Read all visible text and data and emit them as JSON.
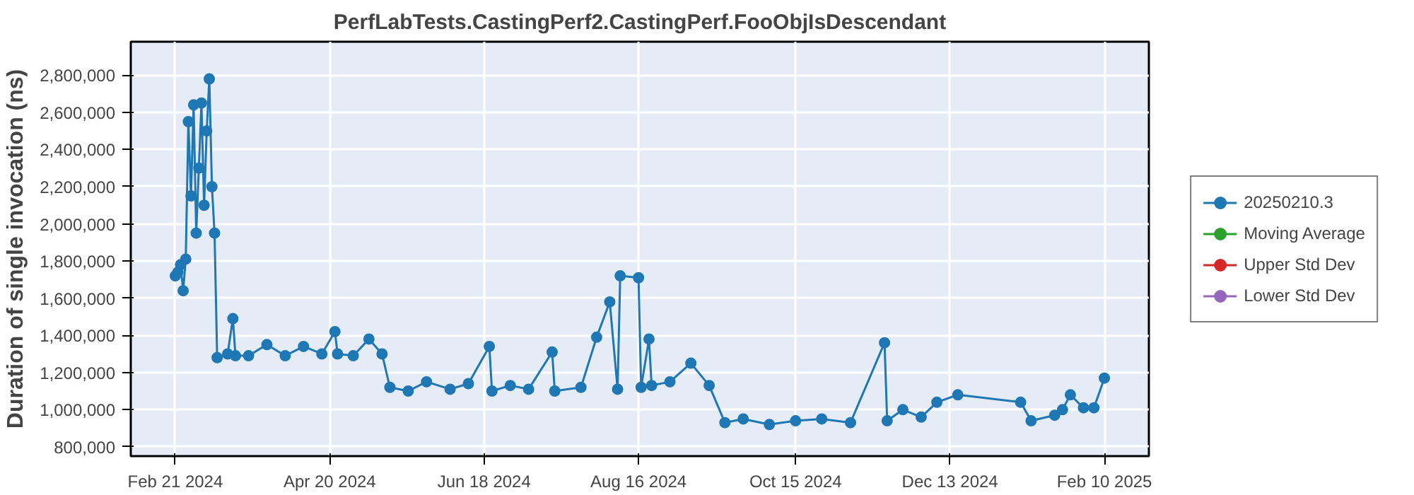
{
  "chart_data": {
    "type": "line",
    "title": "PerfLabTests.CastingPerf2.CastingPerf.FooObjIsDescendant",
    "ylabel": "Duration of single invocation (ns)",
    "marker": "circle",
    "grid": true,
    "legend": "right",
    "xlim": [
      "2024-02-04",
      "2025-02-27"
    ],
    "ylim": [
      750000,
      2980000
    ],
    "xticks": [
      {
        "value": "2024-02-21",
        "label": "Feb 21 2024"
      },
      {
        "value": "2024-04-20",
        "label": "Apr 20 2024"
      },
      {
        "value": "2024-06-18",
        "label": "Jun 18 2024"
      },
      {
        "value": "2024-08-16",
        "label": "Aug 16 2024"
      },
      {
        "value": "2024-10-15",
        "label": "Oct 15 2024"
      },
      {
        "value": "2024-12-13",
        "label": "Dec 13 2024"
      },
      {
        "value": "2025-02-10",
        "label": "Feb 10 2025"
      }
    ],
    "yticks": [
      {
        "value": 800000,
        "label": "800,000"
      },
      {
        "value": 1000000,
        "label": "1,000,000"
      },
      {
        "value": 1200000,
        "label": "1,200,000"
      },
      {
        "value": 1400000,
        "label": "1,400,000"
      },
      {
        "value": 1600000,
        "label": "1,600,000"
      },
      {
        "value": 1800000,
        "label": "1,800,000"
      },
      {
        "value": 2000000,
        "label": "2,000,000"
      },
      {
        "value": 2200000,
        "label": "2,200,000"
      },
      {
        "value": 2400000,
        "label": "2,400,000"
      },
      {
        "value": 2600000,
        "label": "2,600,000"
      },
      {
        "value": 2800000,
        "label": "2,800,000"
      }
    ],
    "series": [
      {
        "name": "20250210.3",
        "color": "#1f77b4",
        "x": [
          "2024-02-21",
          "2024-02-22",
          "2024-02-23",
          "2024-02-24",
          "2024-02-25",
          "2024-02-26",
          "2024-02-27",
          "2024-02-28",
          "2024-02-29",
          "2024-03-01",
          "2024-03-02",
          "2024-03-03",
          "2024-03-04",
          "2024-03-05",
          "2024-03-06",
          "2024-03-07",
          "2024-03-08",
          "2024-03-12",
          "2024-03-14",
          "2024-03-15",
          "2024-03-20",
          "2024-03-27",
          "2024-04-03",
          "2024-04-10",
          "2024-04-17",
          "2024-04-22",
          "2024-04-23",
          "2024-04-29",
          "2024-05-05",
          "2024-05-10",
          "2024-05-13",
          "2024-05-20",
          "2024-05-27",
          "2024-06-05",
          "2024-06-12",
          "2024-06-20",
          "2024-06-21",
          "2024-06-28",
          "2024-07-05",
          "2024-07-14",
          "2024-07-15",
          "2024-07-25",
          "2024-07-31",
          "2024-08-05",
          "2024-08-08",
          "2024-08-09",
          "2024-08-16",
          "2024-08-17",
          "2024-08-20",
          "2024-08-21",
          "2024-08-28",
          "2024-09-05",
          "2024-09-12",
          "2024-09-18",
          "2024-09-25",
          "2024-10-05",
          "2024-10-15",
          "2024-10-25",
          "2024-11-05",
          "2024-11-18",
          "2024-11-19",
          "2024-11-25",
          "2024-12-02",
          "2024-12-08",
          "2024-12-16",
          "2025-01-09",
          "2025-01-13",
          "2025-01-22",
          "2025-01-25",
          "2025-01-28",
          "2025-02-02",
          "2025-02-06",
          "2025-02-10"
        ],
        "values": [
          1720000,
          1740000,
          1780000,
          1640000,
          1810000,
          2550000,
          2150000,
          2640000,
          1950000,
          2300000,
          2650000,
          2100000,
          2500000,
          2780000,
          2200000,
          1950000,
          1280000,
          1300000,
          1490000,
          1290000,
          1290000,
          1350000,
          1290000,
          1340000,
          1300000,
          1420000,
          1300000,
          1290000,
          1380000,
          1300000,
          1120000,
          1100000,
          1150000,
          1110000,
          1140000,
          1340000,
          1100000,
          1130000,
          1110000,
          1310000,
          1100000,
          1120000,
          1390000,
          1580000,
          1110000,
          1720000,
          1710000,
          1120000,
          1380000,
          1130000,
          1150000,
          1250000,
          1130000,
          930000,
          950000,
          920000,
          940000,
          950000,
          930000,
          1360000,
          940000,
          1000000,
          960000,
          1040000,
          1080000,
          1040000,
          940000,
          970000,
          1000000,
          1080000,
          1010000,
          1010000,
          1170000
        ]
      },
      {
        "name": "Moving Average",
        "color": "#2ca02c"
      },
      {
        "name": "Upper Std Dev",
        "color": "#d62728"
      },
      {
        "name": "Lower Std Dev",
        "color": "#9467bd"
      }
    ]
  }
}
